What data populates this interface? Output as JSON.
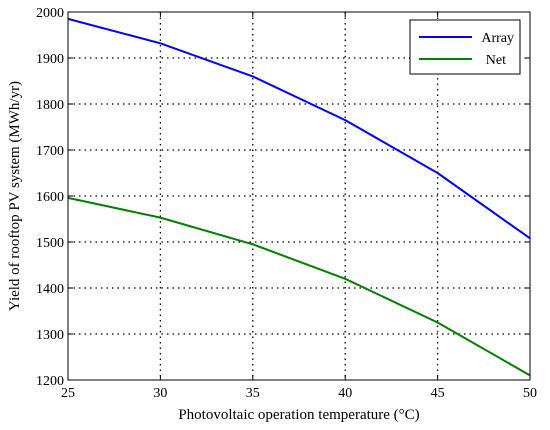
{
  "chart_data": {
    "type": "line",
    "xlabel": "Photovoltaic operation temperature (°C)",
    "ylabel": "Yield of rooftop PV system (MWh/yr)",
    "xlim": [
      25,
      50
    ],
    "ylim": [
      1200,
      2000
    ],
    "xticks": [
      "25",
      "30",
      "35",
      "40",
      "45",
      "50"
    ],
    "yticks": [
      "1200",
      "1300",
      "1400",
      "1500",
      "1600",
      "1700",
      "1800",
      "1900",
      "2000"
    ],
    "grid": true,
    "legend_position": "top-right",
    "x": [
      25,
      30,
      35,
      40,
      45,
      50
    ],
    "series": [
      {
        "name": "Array",
        "color": "#0000ff",
        "values": [
          1985,
          1932,
          1860,
          1765,
          1650,
          1508
        ]
      },
      {
        "name": "Net",
        "color": "#007f00",
        "values": [
          1596,
          1553,
          1495,
          1420,
          1325,
          1210
        ]
      }
    ]
  }
}
